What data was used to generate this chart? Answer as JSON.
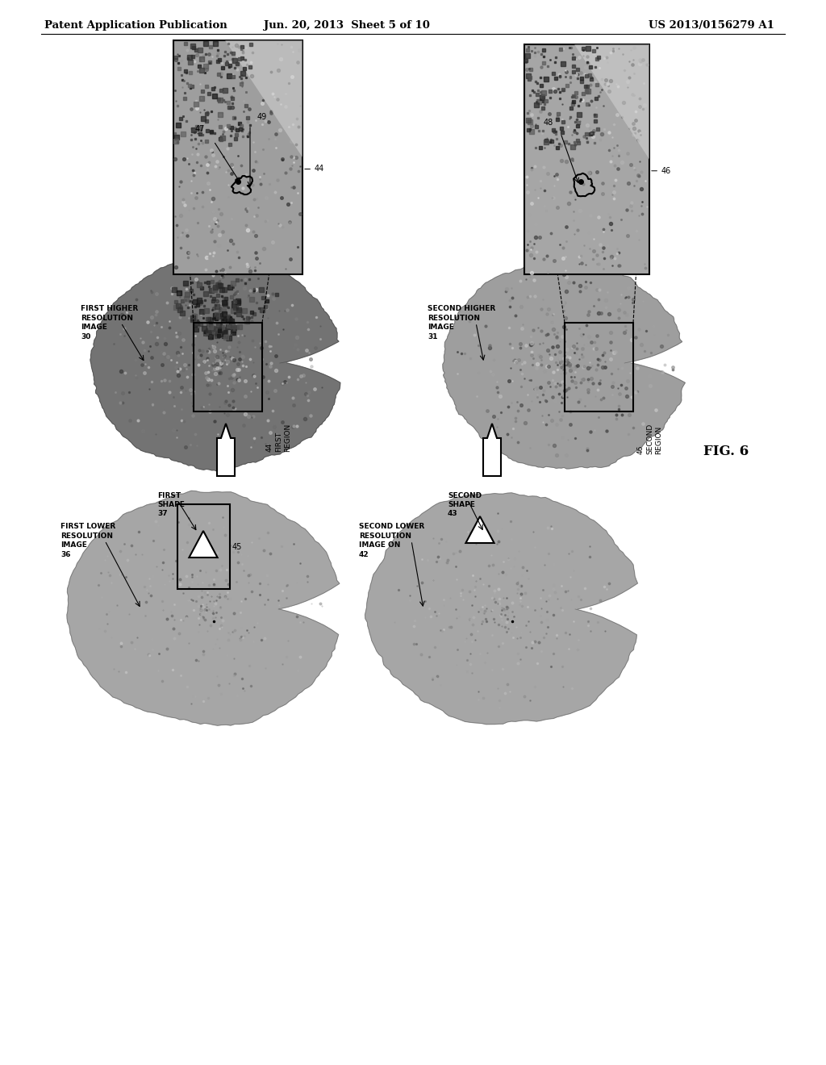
{
  "page_header_left": "Patent Application Publication",
  "page_header_mid": "Jun. 20, 2013  Sheet 5 of 10",
  "page_header_right": "US 2013/0156279 A1",
  "fig_label": "FIG. 6",
  "bg_color": "#ffffff",
  "labels": {
    "first_higher_res": "FIRST HIGHER\nRESOLUTION\nIMAGE\n30",
    "second_higher_res": "SECOND HIGHER\nRESOLUTION\nIMAGE\n31",
    "first_lower_res": "FIRST LOWER\nRESOLUTION\nIMAGE\n36",
    "second_lower_res": "SECOND LOWER\nRESOLUTION\nIMAGE ON\n42",
    "first_region": "44\nFIRST\nREGION",
    "second_region": "46\nSECOND\nREGION",
    "first_shape": "FIRST\nSHAPE\n37",
    "second_shape": "SECOND\nSHAPE\n43",
    "label_44_zoom": "44",
    "label_46_zoom": "46",
    "label_47": "47",
    "label_48": "48",
    "label_49": "49",
    "label_45": "45"
  }
}
